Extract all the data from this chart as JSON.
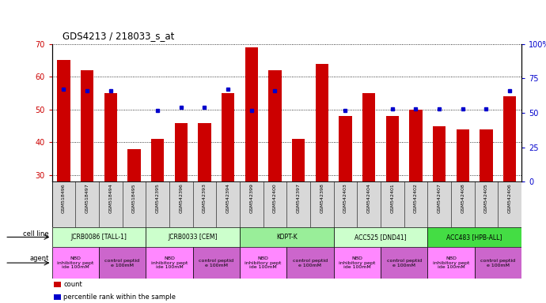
{
  "title": "GDS4213 / 218033_s_at",
  "samples": [
    "GSM518496",
    "GSM518497",
    "GSM518494",
    "GSM518495",
    "GSM542395",
    "GSM542396",
    "GSM542393",
    "GSM542394",
    "GSM542399",
    "GSM542400",
    "GSM542397",
    "GSM542398",
    "GSM542403",
    "GSM542404",
    "GSM542401",
    "GSM542402",
    "GSM542407",
    "GSM542408",
    "GSM542405",
    "GSM542406"
  ],
  "counts_full": [
    65,
    62,
    55,
    38,
    41,
    46,
    46,
    55,
    69,
    62,
    41,
    64,
    48,
    55,
    48,
    50,
    45,
    44,
    44,
    54
  ],
  "percentiles": [
    67,
    66,
    66,
    null,
    52,
    54,
    54,
    67,
    52,
    66,
    null,
    null,
    52,
    null,
    53,
    53,
    53,
    53,
    53,
    66
  ],
  "ylim_left": [
    28,
    70
  ],
  "ylim_right": [
    0,
    100
  ],
  "yticks_left": [
    30,
    40,
    50,
    60,
    70
  ],
  "yticks_right": [
    0,
    25,
    50,
    75,
    100
  ],
  "bar_color": "#cc0000",
  "dot_color": "#0000cc",
  "cell_lines": [
    {
      "name": "JCRB0086 [TALL-1]",
      "start": 0,
      "end": 4,
      "color": "#ccffcc"
    },
    {
      "name": "JCRB0033 [CEM]",
      "start": 4,
      "end": 8,
      "color": "#ccffcc"
    },
    {
      "name": "KOPT-K",
      "start": 8,
      "end": 12,
      "color": "#99ee99"
    },
    {
      "name": "ACC525 [DND41]",
      "start": 12,
      "end": 16,
      "color": "#ccffcc"
    },
    {
      "name": "ACC483 [HPB-ALL]",
      "start": 16,
      "end": 20,
      "color": "#44dd44"
    }
  ],
  "agents": [
    {
      "name": "NBD\ninhibitory pept\nide 100mM",
      "start": 0,
      "end": 2,
      "color": "#ff88ff"
    },
    {
      "name": "control peptid\ne 100mM",
      "start": 2,
      "end": 4,
      "color": "#cc66cc"
    },
    {
      "name": "NBD\ninhibitory pept\nide 100mM",
      "start": 4,
      "end": 6,
      "color": "#ff88ff"
    },
    {
      "name": "control peptid\ne 100mM",
      "start": 6,
      "end": 8,
      "color": "#cc66cc"
    },
    {
      "name": "NBD\ninhibitory pept\nide 100mM",
      "start": 8,
      "end": 10,
      "color": "#ff88ff"
    },
    {
      "name": "control peptid\ne 100mM",
      "start": 10,
      "end": 12,
      "color": "#cc66cc"
    },
    {
      "name": "NBD\ninhibitory pept\nide 100mM",
      "start": 12,
      "end": 14,
      "color": "#ff88ff"
    },
    {
      "name": "control peptid\ne 100mM",
      "start": 14,
      "end": 16,
      "color": "#cc66cc"
    },
    {
      "name": "NBD\ninhibitory pept\nide 100mM",
      "start": 16,
      "end": 18,
      "color": "#ff88ff"
    },
    {
      "name": "control peptid\ne 100mM",
      "start": 18,
      "end": 20,
      "color": "#cc66cc"
    }
  ],
  "tick_label_color_left": "#cc0000",
  "tick_label_color_right": "#0000cc",
  "legend_items": [
    {
      "label": "count",
      "color": "#cc0000"
    },
    {
      "label": "percentile rank within the sample",
      "color": "#0000cc"
    }
  ]
}
